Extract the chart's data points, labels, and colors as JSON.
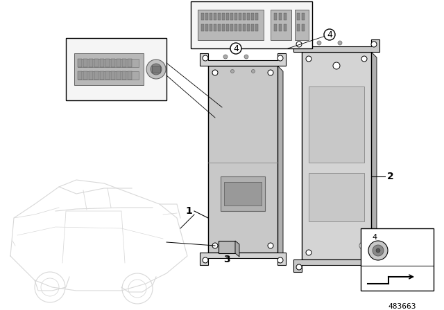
{
  "diagram_number": "483663",
  "background_color": "#ffffff",
  "line_color": "#000000",
  "gray_light": "#d0d0d0",
  "gray_med": "#b8b8b8",
  "gray_dark": "#909090",
  "fig_width": 6.4,
  "fig_height": 4.48,
  "dpi": 100,
  "car_color": "#e0e0e0",
  "unit_color": "#c8c8c8",
  "unit_color2": "#d4d4d4",
  "inset_bg": "#f5f5f5"
}
